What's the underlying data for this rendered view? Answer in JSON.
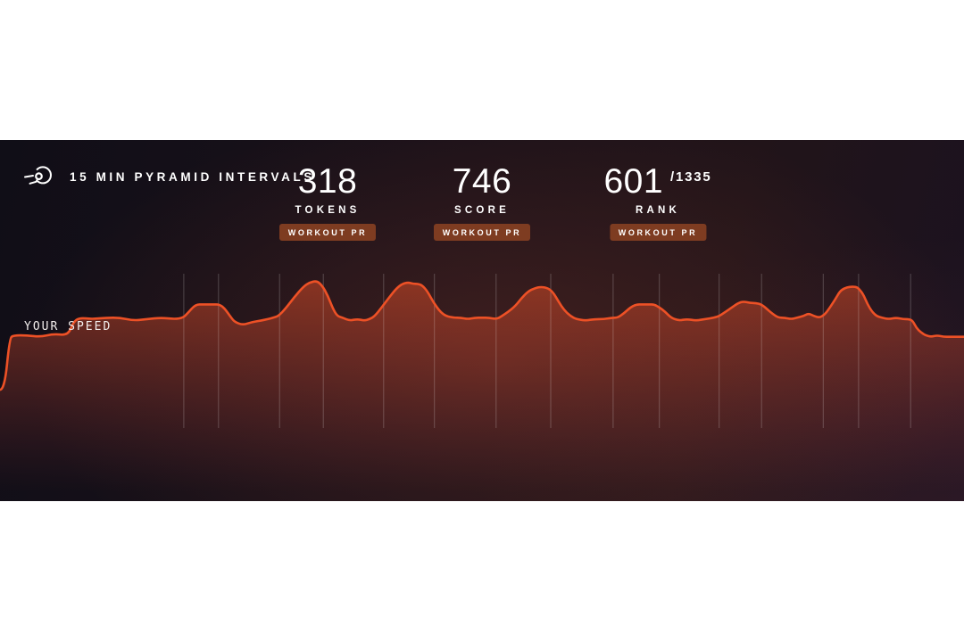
{
  "header": {
    "icon": "speed-comet-icon",
    "title": "15 MIN PYRAMID INTERVALS"
  },
  "stats": [
    {
      "value": "318",
      "label": "TOKENS",
      "badge": "WORKOUT PR"
    },
    {
      "value": "746",
      "label": "SCORE",
      "badge": "WORKOUT PR"
    },
    {
      "value": "601",
      "suffix": "/1335",
      "label": "RANK",
      "badge": "WORKOUT PR"
    }
  ],
  "chart": {
    "series_label": "YOUR SPEED"
  },
  "colors": {
    "line": "#ed5126",
    "fill_top": "#ef5227",
    "badge_bg": "#7e3c21",
    "gridline": "rgba(255,255,255,0.22)",
    "panel_dark": "#151019",
    "text": "#ffffff"
  },
  "chart_data": {
    "type": "area",
    "title": "15 MIN PYRAMID INTERVALS — YOUR SPEED",
    "xlabel": "time (workout duration 15 min, axis unlabeled)",
    "ylabel": "speed (relative units, axis unlabeled)",
    "x_range_minutes": [
      0,
      15
    ],
    "y_range": [
      0,
      110
    ],
    "grid": "vertical interval boundaries only",
    "legend": "none (inline label YOUR SPEED)",
    "gridlines_minutes": [
      2.86,
      3.4,
      4.35,
      5.03,
      5.97,
      6.76,
      7.72,
      8.57,
      9.54,
      10.26,
      11.19,
      11.85,
      12.81,
      13.36,
      14.17
    ],
    "series": [
      {
        "name": "YOUR SPEED",
        "points": [
          [
            0,
            26
          ],
          [
            0.07,
            26
          ],
          [
            0.15,
            61
          ],
          [
            0.21,
            63
          ],
          [
            0.42,
            63
          ],
          [
            0.63,
            62
          ],
          [
            0.83,
            64
          ],
          [
            1.06,
            63
          ],
          [
            1.14,
            72
          ],
          [
            1.24,
            75
          ],
          [
            1.43,
            74
          ],
          [
            1.65,
            75
          ],
          [
            1.86,
            75
          ],
          [
            2.08,
            73
          ],
          [
            2.29,
            74
          ],
          [
            2.51,
            75
          ],
          [
            2.72,
            74
          ],
          [
            2.85,
            75
          ],
          [
            2.92,
            78
          ],
          [
            3.04,
            84
          ],
          [
            3.17,
            84
          ],
          [
            3.31,
            84
          ],
          [
            3.42,
            84
          ],
          [
            3.5,
            81
          ],
          [
            3.58,
            76
          ],
          [
            3.65,
            72
          ],
          [
            3.78,
            70
          ],
          [
            3.92,
            72
          ],
          [
            4.06,
            73
          ],
          [
            4.17,
            74
          ],
          [
            4.25,
            75
          ],
          [
            4.33,
            76
          ],
          [
            4.44,
            81
          ],
          [
            4.58,
            89
          ],
          [
            4.72,
            96
          ],
          [
            4.82,
            99
          ],
          [
            4.93,
            100
          ],
          [
            5.01,
            97
          ],
          [
            5.1,
            90
          ],
          [
            5.18,
            81
          ],
          [
            5.25,
            76
          ],
          [
            5.33,
            75
          ],
          [
            5.44,
            73
          ],
          [
            5.56,
            74
          ],
          [
            5.67,
            73
          ],
          [
            5.75,
            74
          ],
          [
            5.83,
            76
          ],
          [
            5.94,
            82
          ],
          [
            6.06,
            89
          ],
          [
            6.17,
            95
          ],
          [
            6.26,
            98
          ],
          [
            6.35,
            99
          ],
          [
            6.43,
            98
          ],
          [
            6.5,
            98
          ],
          [
            6.57,
            97
          ],
          [
            6.65,
            93
          ],
          [
            6.75,
            85
          ],
          [
            6.85,
            79
          ],
          [
            6.94,
            76
          ],
          [
            7.06,
            75
          ],
          [
            7.17,
            75
          ],
          [
            7.28,
            74
          ],
          [
            7.39,
            75
          ],
          [
            7.5,
            75
          ],
          [
            7.61,
            75
          ],
          [
            7.72,
            74
          ],
          [
            7.81,
            76
          ],
          [
            8,
            82
          ],
          [
            8.11,
            88
          ],
          [
            8.22,
            93
          ],
          [
            8.32,
            95
          ],
          [
            8.42,
            96
          ],
          [
            8.53,
            95
          ],
          [
            8.61,
            92
          ],
          [
            8.69,
            86
          ],
          [
            8.78,
            80
          ],
          [
            8.88,
            76
          ],
          [
            8.97,
            74
          ],
          [
            9.11,
            73
          ],
          [
            9.25,
            74
          ],
          [
            9.39,
            74
          ],
          [
            9.53,
            75
          ],
          [
            9.61,
            75
          ],
          [
            9.71,
            78
          ],
          [
            9.81,
            82
          ],
          [
            9.9,
            84
          ],
          [
            10,
            84
          ],
          [
            10.1,
            84
          ],
          [
            10.18,
            84
          ],
          [
            10.26,
            82
          ],
          [
            10.35,
            79
          ],
          [
            10.44,
            75
          ],
          [
            10.56,
            73
          ],
          [
            10.69,
            74
          ],
          [
            10.83,
            73
          ],
          [
            10.97,
            74
          ],
          [
            11.11,
            75
          ],
          [
            11.19,
            76
          ],
          [
            11.29,
            79
          ],
          [
            11.39,
            82
          ],
          [
            11.49,
            85
          ],
          [
            11.57,
            86
          ],
          [
            11.67,
            85
          ],
          [
            11.76,
            85
          ],
          [
            11.85,
            84
          ],
          [
            11.93,
            81
          ],
          [
            12.01,
            78
          ],
          [
            12.11,
            75
          ],
          [
            12.21,
            75
          ],
          [
            12.31,
            74
          ],
          [
            12.4,
            75
          ],
          [
            12.5,
            76
          ],
          [
            12.58,
            78
          ],
          [
            12.67,
            76
          ],
          [
            12.75,
            75
          ],
          [
            12.83,
            77
          ],
          [
            12.9,
            81
          ],
          [
            12.99,
            87
          ],
          [
            13.07,
            93
          ],
          [
            13.14,
            95
          ],
          [
            13.22,
            96
          ],
          [
            13.31,
            96
          ],
          [
            13.36,
            95
          ],
          [
            13.43,
            91
          ],
          [
            13.5,
            84
          ],
          [
            13.57,
            79
          ],
          [
            13.64,
            76
          ],
          [
            13.72,
            75
          ],
          [
            13.83,
            74
          ],
          [
            13.94,
            75
          ],
          [
            14.06,
            74
          ],
          [
            14.14,
            74
          ],
          [
            14.2,
            73
          ],
          [
            14.26,
            68
          ],
          [
            14.33,
            65
          ],
          [
            14.4,
            63
          ],
          [
            14.49,
            62
          ],
          [
            14.58,
            63
          ],
          [
            14.68,
            62
          ],
          [
            14.78,
            62
          ],
          [
            14.88,
            62
          ],
          [
            15,
            62
          ]
        ]
      }
    ]
  }
}
